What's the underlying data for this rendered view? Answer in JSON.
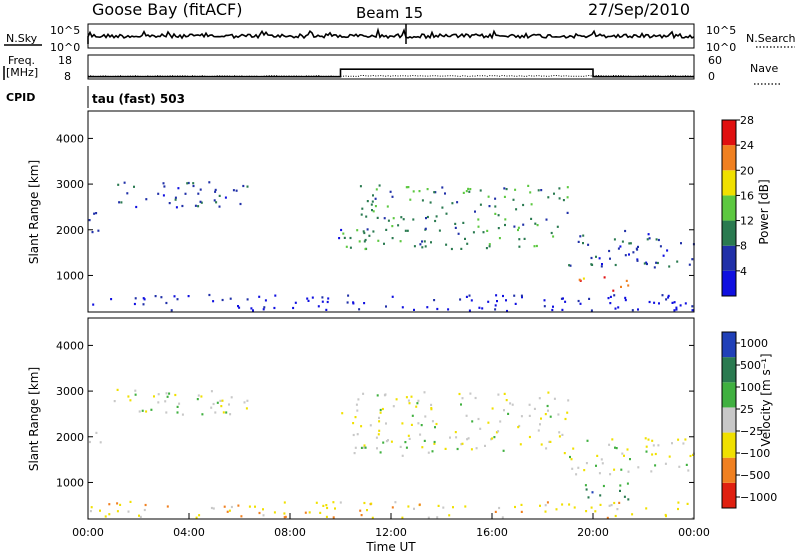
{
  "header": {
    "station": "Goose Bay (fitACF)",
    "beam": "Beam 15",
    "date": "27/Sep/2010"
  },
  "nsky_panel": {
    "left_label": "N.Sky",
    "right_label": "N.Search",
    "left_ticks": [
      "10^5",
      "10^0"
    ],
    "right_ticks": [
      "10^5",
      "10^0"
    ]
  },
  "freq_panel": {
    "left_label_line1": "Freq.",
    "left_label_line2": "[MHz]",
    "right_label": "Nave",
    "left_ticks": [
      "18",
      "8"
    ],
    "right_ticks": [
      "60",
      "0"
    ],
    "freq_values_mhz": [
      {
        "from": "00:00",
        "to": "10:00",
        "value": 8.6
      },
      {
        "from": "10:00",
        "to": "20:00",
        "value": 12.0
      },
      {
        "from": "20:00",
        "to": "24:00",
        "value": 8.6
      }
    ]
  },
  "cpid": {
    "label": "CPID",
    "mode": "tau (fast) 503"
  },
  "chart_data": [
    {
      "type": "heatmap",
      "name": "power",
      "ylabel": "Slant Range [km]",
      "xlabel": "",
      "y_ticks": [
        "1000",
        "2000",
        "3000",
        "4000"
      ],
      "ylim": [
        200,
        4600
      ],
      "xlim_hours": [
        0,
        24
      ],
      "colorbar": {
        "label": "Power [dB]",
        "ticks": [
          "4",
          "8",
          "12",
          "16",
          "20",
          "24",
          "28"
        ],
        "colors": [
          "#1010e0",
          "#2030a8",
          "#2a7a50",
          "#5cc840",
          "#f0e000",
          "#f08020",
          "#e01010"
        ]
      },
      "regions": [
        {
          "t": [
            0.0,
            0.5
          ],
          "r": [
            1900,
            2400
          ],
          "level": 1
        },
        {
          "t": [
            1.0,
            6.3
          ],
          "r": [
            2500,
            3100
          ],
          "level": 1
        },
        {
          "t": [
            9.8,
            10.0
          ],
          "r": [
            1800,
            2300
          ],
          "level": 1
        },
        {
          "t": [
            10.0,
            19.0
          ],
          "r": [
            1600,
            3000
          ],
          "level": 2
        },
        {
          "t": [
            19.0,
            24.0
          ],
          "r": [
            1200,
            2000
          ],
          "level": 1
        },
        {
          "t": [
            19.4,
            21.6
          ],
          "r": [
            650,
            1000
          ],
          "level": 5
        },
        {
          "t": [
            0.0,
            24.0
          ],
          "r": [
            220,
            600
          ],
          "level": 0
        }
      ]
    },
    {
      "type": "heatmap",
      "name": "velocity",
      "ylabel": "Slant Range [km]",
      "xlabel": "Time UT",
      "y_ticks": [
        "1000",
        "2000",
        "3000",
        "4000"
      ],
      "ylim": [
        200,
        4600
      ],
      "xlim_hours": [
        0,
        24
      ],
      "x_ticks": [
        "00:00",
        "04:00",
        "08:00",
        "12:00",
        "16:00",
        "20:00",
        "00:00"
      ],
      "colorbar": {
        "label": "Velocity [m s⁻¹]",
        "ticks": [
          "1000",
          "500",
          "100",
          "25",
          "−25",
          "−100",
          "−500",
          "−1000"
        ],
        "colors": [
          "#2040b8",
          "#2a7a50",
          "#40b040",
          "#c8c8c8",
          "#f0e000",
          "#f08020",
          "#e02010"
        ]
      },
      "regions": [
        {
          "t": [
            0.0,
            0.5
          ],
          "r": [
            1900,
            2400
          ],
          "level": 3
        },
        {
          "t": [
            1.0,
            6.3
          ],
          "r": [
            2500,
            3100
          ],
          "level": 3
        },
        {
          "t": [
            10.0,
            19.0
          ],
          "r": [
            1600,
            3000
          ],
          "level": 3
        },
        {
          "t": [
            19.0,
            24.0
          ],
          "r": [
            1200,
            2000
          ],
          "level": 3
        },
        {
          "t": [
            19.4,
            21.6
          ],
          "r": [
            650,
            1000
          ],
          "level": 1
        },
        {
          "t": [
            0.0,
            24.0
          ],
          "r": [
            220,
            600
          ],
          "level": 4
        }
      ]
    }
  ]
}
